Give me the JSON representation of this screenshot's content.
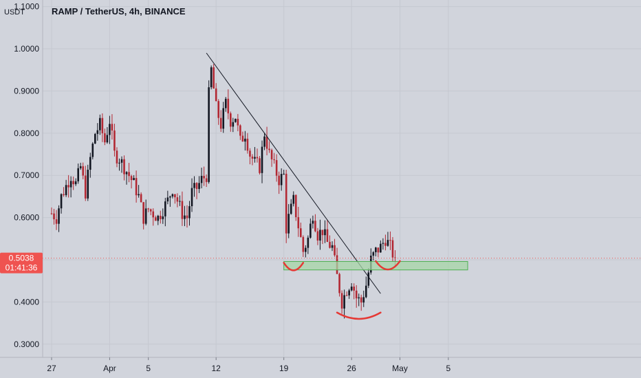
{
  "header": {
    "title": "RAMP / TetherUS, 4h, BINANCE",
    "unit": "USDT"
  },
  "price_tag": {
    "price": "0.5038",
    "countdown": "01:41:36",
    "color": "#ef5350"
  },
  "colors": {
    "background": "#d1d4dc",
    "up": "#131722",
    "down": "#b22833",
    "trendline": "#131722",
    "zone_fill": "#a5d6a7",
    "zone_border": "#4caf50",
    "arc": "#e53935",
    "last_price_line": "#ef5350"
  },
  "chart_data": {
    "type": "candlestick",
    "title": "RAMP / TetherUS, 4h, BINANCE",
    "ylabel": "USDT",
    "ylim": [
      0.28,
      1.06
    ],
    "xlim": [
      0,
      54
    ],
    "y_ticks": [
      {
        "value": 0.3,
        "label": "0.3000"
      },
      {
        "value": 0.4,
        "label": "0.4000"
      },
      {
        "value": 0.5,
        "label": "0.5000"
      },
      {
        "value": 0.6,
        "label": "0.6000"
      },
      {
        "value": 0.7,
        "label": "0.7000"
      },
      {
        "value": 0.8,
        "label": "0.8000"
      },
      {
        "value": 0.9,
        "label": "0.9000"
      },
      {
        "value": 1.0,
        "label": "1.0000"
      },
      {
        "value": 1.1,
        "label": "1.1000"
      }
    ],
    "x_ticks": [
      {
        "day": 0,
        "label": "27"
      },
      {
        "day": 6,
        "label": "Apr"
      },
      {
        "day": 10,
        "label": "5"
      },
      {
        "day": 17,
        "label": "12"
      },
      {
        "day": 24,
        "label": "19"
      },
      {
        "day": 31,
        "label": "26"
      },
      {
        "day": 36,
        "label": "May"
      },
      {
        "day": 41,
        "label": "5"
      }
    ],
    "key_points": [
      [
        0,
        0.61
      ],
      [
        0.5,
        0.6
      ],
      [
        1,
        0.65
      ],
      [
        2,
        0.7
      ],
      [
        2.5,
        0.68
      ],
      [
        3,
        0.72
      ],
      [
        3.5,
        0.66
      ],
      [
        4,
        0.74
      ],
      [
        4.5,
        0.8
      ],
      [
        5,
        0.82
      ],
      [
        5.5,
        0.78
      ],
      [
        6,
        0.83
      ],
      [
        6.5,
        0.75
      ],
      [
        7,
        0.74
      ],
      [
        8,
        0.7
      ],
      [
        8.5,
        0.68
      ],
      [
        9,
        0.65
      ],
      [
        9.5,
        0.6
      ],
      [
        10,
        0.62
      ],
      [
        11,
        0.6
      ],
      [
        12,
        0.64
      ],
      [
        12.5,
        0.67
      ],
      [
        13,
        0.64
      ],
      [
        13.5,
        0.61
      ],
      [
        14,
        0.6
      ],
      [
        14.5,
        0.66
      ],
      [
        15,
        0.67
      ],
      [
        15.5,
        0.69
      ],
      [
        16,
        0.7
      ],
      [
        16.2,
        0.88
      ],
      [
        16.5,
        0.95
      ],
      [
        17,
        0.86
      ],
      [
        17.5,
        0.82
      ],
      [
        18,
        0.87
      ],
      [
        18.5,
        0.83
      ],
      [
        19,
        0.84
      ],
      [
        19.5,
        0.78
      ],
      [
        20,
        0.8
      ],
      [
        20.5,
        0.75
      ],
      [
        21,
        0.73
      ],
      [
        21.5,
        0.72
      ],
      [
        22,
        0.8
      ],
      [
        22.5,
        0.75
      ],
      [
        23,
        0.72
      ],
      [
        23.5,
        0.69
      ],
      [
        24,
        0.7
      ],
      [
        24.2,
        0.57
      ],
      [
        24.5,
        0.6
      ],
      [
        25,
        0.64
      ],
      [
        25.5,
        0.58
      ],
      [
        26,
        0.52
      ],
      [
        26.5,
        0.55
      ],
      [
        27,
        0.61
      ],
      [
        27.5,
        0.56
      ],
      [
        28,
        0.57
      ],
      [
        28.5,
        0.54
      ],
      [
        29,
        0.53
      ],
      [
        29.5,
        0.46
      ],
      [
        30,
        0.4
      ],
      [
        30.5,
        0.43
      ],
      [
        31,
        0.45
      ],
      [
        31.5,
        0.41
      ],
      [
        32,
        0.4
      ],
      [
        32.5,
        0.44
      ],
      [
        33,
        0.5
      ],
      [
        33.5,
        0.52
      ],
      [
        34,
        0.53
      ],
      [
        34.5,
        0.55
      ],
      [
        35,
        0.53
      ],
      [
        35.5,
        0.5
      ]
    ],
    "last_price": 0.5038,
    "annotations": [
      {
        "type": "trendline",
        "from": [
          16,
          0.99
        ],
        "to": [
          34,
          0.42
        ]
      },
      {
        "type": "zone",
        "x": [
          24,
          43
        ],
        "y": [
          0.476,
          0.496
        ]
      },
      {
        "type": "arc",
        "x": [
          24,
          26
        ],
        "y_top": 0.493,
        "y_bottom": 0.475
      },
      {
        "type": "arc",
        "x": [
          29.5,
          34
        ],
        "y_top": 0.375,
        "y_bottom": 0.36
      },
      {
        "type": "arc",
        "x": [
          33.5,
          36
        ],
        "y_top": 0.497,
        "y_bottom": 0.477
      }
    ]
  }
}
